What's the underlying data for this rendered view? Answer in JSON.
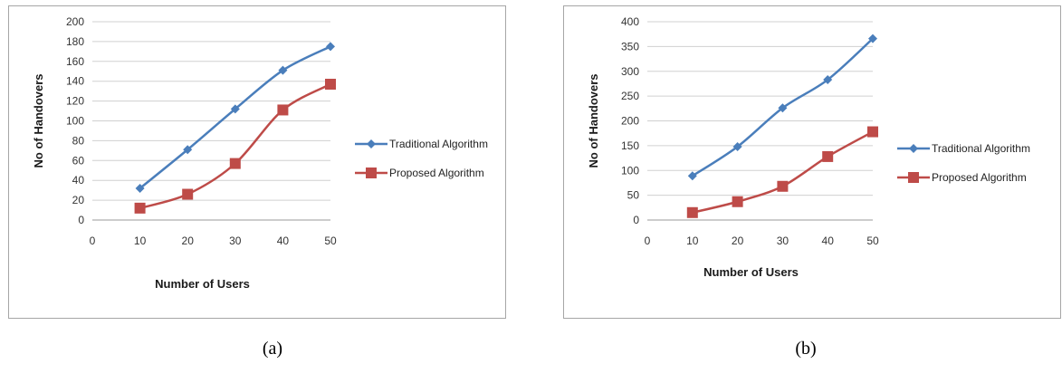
{
  "chart_data": [
    {
      "id": "a",
      "type": "line",
      "caption": "(a)",
      "xlabel": "Number of Users",
      "ylabel": "No of Handovers",
      "xlim": [
        0,
        50
      ],
      "ylim": [
        0,
        200
      ],
      "x_ticks": [
        "0",
        "10",
        "20",
        "30",
        "40",
        "50"
      ],
      "y_ticks": [
        "0",
        "20",
        "40",
        "60",
        "80",
        "100",
        "120",
        "140",
        "160",
        "180",
        "200"
      ],
      "grid": true,
      "legend": "right",
      "x": [
        10,
        20,
        30,
        40,
        50
      ],
      "series": [
        {
          "name": "Traditional Algorithm",
          "color": "#4a7ebb",
          "marker": "diamond",
          "values": [
            32,
            71,
            112,
            151,
            175
          ]
        },
        {
          "name": "Proposed Algorithm",
          "color": "#be4b48",
          "marker": "square",
          "values": [
            12,
            26,
            57,
            111,
            137
          ]
        }
      ]
    },
    {
      "id": "b",
      "type": "line",
      "caption": "(b)",
      "xlabel": "Number of Users",
      "ylabel": "No of Handovers",
      "xlim": [
        0,
        50
      ],
      "ylim": [
        0,
        400
      ],
      "x_ticks": [
        "0",
        "10",
        "20",
        "30",
        "40",
        "50"
      ],
      "y_ticks": [
        "0",
        "50",
        "100",
        "150",
        "200",
        "250",
        "300",
        "350",
        "400"
      ],
      "grid": true,
      "legend": "right",
      "x": [
        10,
        20,
        30,
        40,
        50
      ],
      "series": [
        {
          "name": "Traditional Algorithm",
          "color": "#4a7ebb",
          "marker": "diamond",
          "values": [
            89,
            148,
            226,
            283,
            366
          ]
        },
        {
          "name": "Proposed Algorithm",
          "color": "#be4b48",
          "marker": "square",
          "values": [
            15,
            37,
            68,
            128,
            178
          ]
        }
      ]
    }
  ]
}
